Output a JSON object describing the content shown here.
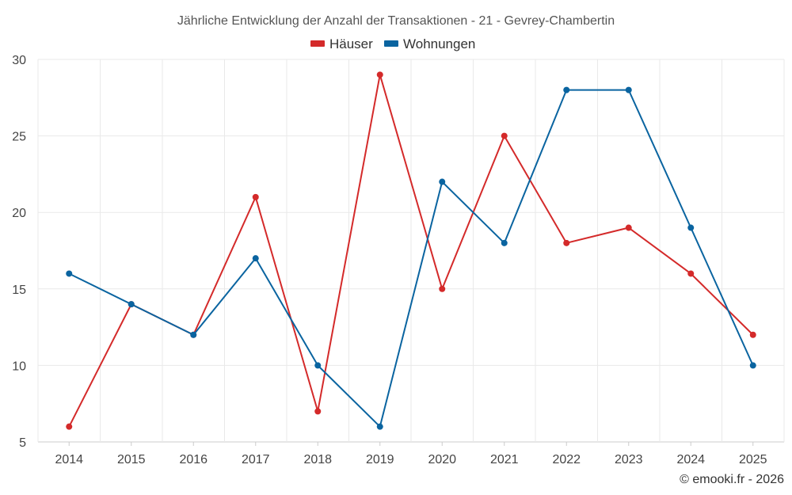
{
  "chart_data": {
    "type": "line",
    "title": "Jährliche Entwicklung der Anzahl der Transaktionen - 21 - Gevrey-Chambertin",
    "categories": [
      "2014",
      "2015",
      "2016",
      "2017",
      "2018",
      "2019",
      "2020",
      "2021",
      "2022",
      "2023",
      "2024",
      "2025"
    ],
    "series": [
      {
        "name": "Häuser",
        "color": "#d42a2a",
        "values": [
          6,
          14,
          12,
          21,
          7,
          29,
          15,
          25,
          18,
          19,
          16,
          12
        ]
      },
      {
        "name": "Wohnungen",
        "color": "#0a64a0",
        "values": [
          16,
          14,
          12,
          17,
          10,
          6,
          22,
          18,
          28,
          28,
          19,
          10
        ]
      }
    ],
    "ylim": [
      5,
      30
    ],
    "yticks": [
      5,
      10,
      15,
      20,
      25,
      30
    ],
    "xlabel": "",
    "ylabel": "",
    "grid": true,
    "legend": "top-center"
  },
  "credit": "© emooki.fr - 2026"
}
